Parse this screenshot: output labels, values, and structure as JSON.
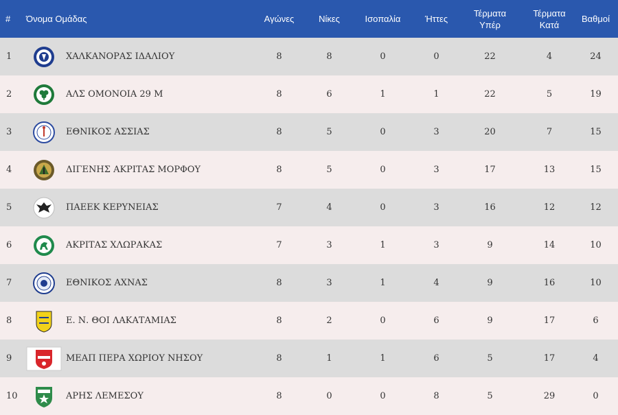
{
  "headers": {
    "num": "#",
    "team": "Όνομα Ομάδας",
    "played": "Αγώνες",
    "wins": "Νίκες",
    "draws": "Ισοπαλία",
    "losses": "Ήττες",
    "goals_for_1": "Τέρματα",
    "goals_for_2": "Υπέρ",
    "goals_against_1": "Τέρματα",
    "goals_against_2": "Κατά",
    "points": "Βαθμοί"
  },
  "rows": [
    {
      "pos": "1",
      "team": "ΧΑΛΚΑΝΟΡΑΣ ΙΔΑΛΙΟΥ",
      "logo": "chalkanoras-crest-icon",
      "played": "8",
      "wins": "8",
      "draws": "0",
      "losses": "0",
      "gf": "22",
      "ga": "4",
      "pts": "24"
    },
    {
      "pos": "2",
      "team": "ΑΛΣ ΟΜΟΝΟΙΑ 29 Μ",
      "logo": "omonoia-clover-crest-icon",
      "played": "8",
      "wins": "6",
      "draws": "1",
      "losses": "1",
      "gf": "22",
      "ga": "5",
      "pts": "19"
    },
    {
      "pos": "3",
      "team": "ΕΘΝΙΚΟΣ ΑΣΣΙΑΣ",
      "logo": "ethnikos-assias-crest-icon",
      "played": "8",
      "wins": "5",
      "draws": "0",
      "losses": "3",
      "gf": "20",
      "ga": "7",
      "pts": "15"
    },
    {
      "pos": "4",
      "team": "ΔΙΓΕΝΗΣ ΑΚΡΙΤΑΣ ΜΟΡΦΟΥ",
      "logo": "digenis-crest-icon",
      "played": "8",
      "wins": "5",
      "draws": "0",
      "losses": "3",
      "gf": "17",
      "ga": "13",
      "pts": "15"
    },
    {
      "pos": "5",
      "team": "ΠΑΕΕΚ ΚΕΡΥΝΕΙΑΣ",
      "logo": "paeek-eagle-crest-icon",
      "played": "7",
      "wins": "4",
      "draws": "0",
      "losses": "3",
      "gf": "16",
      "ga": "12",
      "pts": "12"
    },
    {
      "pos": "6",
      "team": "ΑΚΡΙΤΑΣ ΧΛΩΡΑΚΑΣ",
      "logo": "akritas-horse-crest-icon",
      "played": "7",
      "wins": "3",
      "draws": "1",
      "losses": "3",
      "gf": "9",
      "ga": "14",
      "pts": "10"
    },
    {
      "pos": "7",
      "team": "ΕΘΝΙΚΟΣ ΑΧΝΑΣ",
      "logo": "ethnikos-achnas-crest-icon",
      "played": "8",
      "wins": "3",
      "draws": "1",
      "losses": "4",
      "gf": "9",
      "ga": "16",
      "pts": "10"
    },
    {
      "pos": "8",
      "team": "Ε. Ν. ΘΟΙ ΛΑΚΑΤΑΜΙΑΣ",
      "logo": "thoi-shield-crest-icon",
      "played": "8",
      "wins": "2",
      "draws": "0",
      "losses": "6",
      "gf": "9",
      "ga": "17",
      "pts": "6"
    },
    {
      "pos": "9",
      "team": "ΜΕΑΠ ΠΕΡΑ ΧΩΡΙΟΥ ΝΗΣΟΥ",
      "logo": "meap-crest-icon",
      "played": "8",
      "wins": "1",
      "draws": "1",
      "losses": "6",
      "gf": "5",
      "ga": "17",
      "pts": "4"
    },
    {
      "pos": "10",
      "team": "ΑΡΗΣ ΛΕΜΕΣΟΥ",
      "logo": "aris-crest-icon",
      "played": "8",
      "wins": "0",
      "draws": "0",
      "losses": "8",
      "gf": "5",
      "ga": "29",
      "pts": "0"
    }
  ]
}
